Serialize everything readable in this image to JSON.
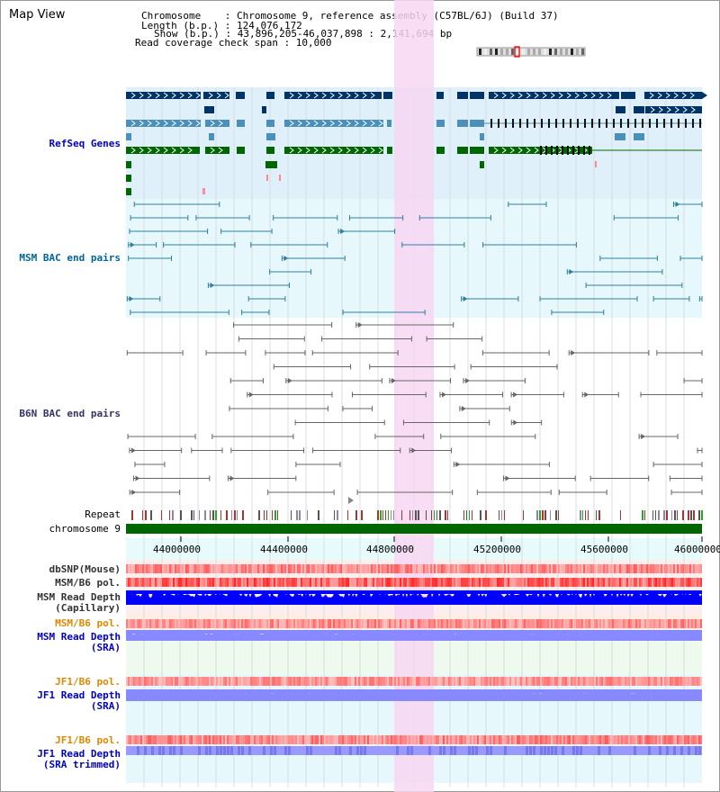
{
  "app_title": "Map View",
  "info": {
    "chromosome": "Chromosome    : Chromosome 9, reference assembly (C57BL/6J) (Build 37)",
    "length": "Length (b.p.) : 124,076,172",
    "show": "Show (b.p.) : 43,896,205-46,037,898 : 2,141,694 bp",
    "coverage": "Read coverage check span : 10,000"
  },
  "tracks": {
    "refseq": "RefSeq Genes",
    "msm_bac": "MSM BAC end pairs",
    "b6n_bac": "B6N BAC end pairs",
    "repeat": "Repeat",
    "chromosome": "chromosome 9",
    "dbsnp": "dbSNP(Mouse)",
    "msm_b6_pol_1": "MSM/B6 pol.",
    "msm_depth_cap": "MSM Read Depth\n(Capillary)",
    "msm_b6_pol_2": "MSM/B6 pol.",
    "msm_depth_sra": "MSM Read Depth\n(SRA)",
    "jf1_b6_pol_1": "JF1/B6 pol.",
    "jf1_depth_sra": "JF1 Read Depth\n(SRA)",
    "jf1_b6_pol_2": "JF1/B6 pol.",
    "jf1_depth_trim": "JF1 Read Depth\n(SRA trimmed)"
  },
  "axis_ticks": [
    "44000000",
    "44400000",
    "44800000",
    "45200000",
    "45600000",
    "46000000"
  ],
  "colors": {
    "refseq_label": "#0000cc",
    "msm_label": "#006699",
    "b6n_label": "#333366",
    "orange_label": "#dd8800",
    "blue_label": "#0000cc",
    "highlight": "#f7d7f2",
    "gene_dark": "#003366",
    "gene_mid": "#4a90b8",
    "gene_green": "#006600",
    "chrom_green": "#006600",
    "depth_blue": "#0000ff",
    "depth_light": "#8888ff",
    "pol_red": "#ee3333"
  }
}
